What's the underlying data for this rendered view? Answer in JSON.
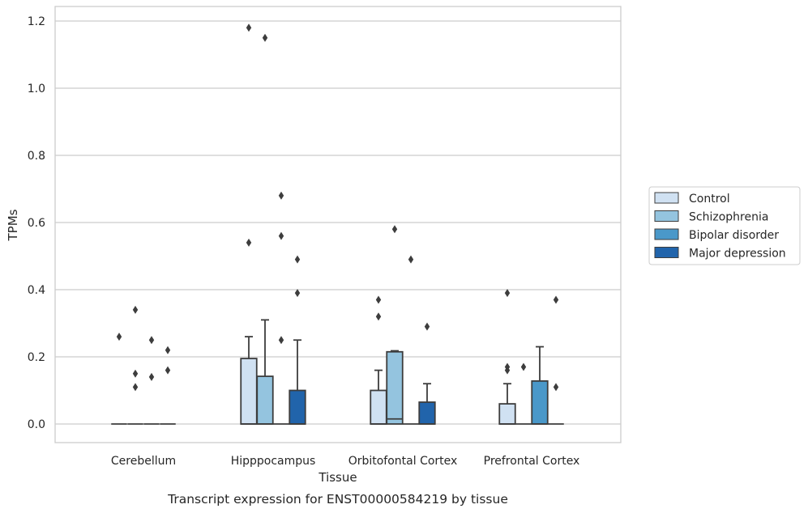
{
  "chart_data": {
    "type": "box",
    "caption": "Transcript expression for ENST00000584219 by tissue",
    "xlabel": "Tissue",
    "ylabel": "TPMs",
    "ylim": [
      -0.057,
      1.24
    ],
    "yticks": [
      0.0,
      0.2,
      0.4,
      0.6,
      0.8,
      1.0,
      1.2
    ],
    "ytick_labels": [
      "0.0",
      "0.2",
      "0.4",
      "0.6",
      "0.8",
      "1.0",
      "1.2"
    ],
    "grid": "horizontal",
    "legend_position": "right",
    "categories": [
      "Cerebellum",
      "Hipppocampus",
      "Orbitofontal Cortex",
      "Prefrontal Cortex"
    ],
    "series": [
      {
        "name": "Control",
        "color": "#d0e1f2",
        "boxes": [
          {
            "q1": 0,
            "median": 0,
            "q3": 0,
            "whislo": 0,
            "whishi": 0,
            "fliers": [
              0.26
            ]
          },
          {
            "q1": 0,
            "median": 0,
            "q3": 0.195,
            "whislo": 0,
            "whishi": 0.26,
            "fliers": [
              0.54,
              1.18
            ]
          },
          {
            "q1": 0,
            "median": 0,
            "q3": 0.1,
            "whislo": 0,
            "whishi": 0.16,
            "fliers": [
              0.32,
              0.37
            ]
          },
          {
            "q1": 0,
            "median": 0,
            "q3": 0.06,
            "whislo": 0,
            "whishi": 0.12,
            "fliers": [
              0.16,
              0.17,
              0.39
            ]
          }
        ]
      },
      {
        "name": "Schizophrenia",
        "color": "#94c4df",
        "boxes": [
          {
            "q1": 0,
            "median": 0,
            "q3": 0,
            "whislo": 0,
            "whishi": 0,
            "fliers": [
              0.11,
              0.15,
              0.34
            ]
          },
          {
            "q1": 0,
            "median": 0,
            "q3": 0.142,
            "whislo": 0,
            "whishi": 0.31,
            "fliers": [
              1.15
            ]
          },
          {
            "q1": 0,
            "median": 0.015,
            "q3": 0.215,
            "whislo": 0,
            "whishi": 0.218,
            "fliers": [
              0.58
            ]
          },
          {
            "q1": 0,
            "median": 0,
            "q3": 0,
            "whislo": 0,
            "whishi": 0,
            "fliers": [
              0.17
            ]
          }
        ]
      },
      {
        "name": "Bipolar disorder",
        "color": "#4a98c9",
        "boxes": [
          {
            "q1": 0,
            "median": 0,
            "q3": 0,
            "whislo": 0,
            "whishi": 0,
            "fliers": [
              0.14,
              0.25
            ]
          },
          {
            "q1": 0,
            "median": 0,
            "q3": 0,
            "whislo": 0,
            "whishi": 0,
            "fliers": [
              0.25,
              0.56,
              0.68
            ]
          },
          {
            "q1": 0,
            "median": 0,
            "q3": 0,
            "whislo": 0,
            "whishi": 0,
            "fliers": [
              0.49
            ]
          },
          {
            "q1": 0,
            "median": 0,
            "q3": 0.128,
            "whislo": 0,
            "whishi": 0.23,
            "fliers": []
          }
        ]
      },
      {
        "name": "Major depression",
        "color": "#2164ab",
        "boxes": [
          {
            "q1": 0,
            "median": 0,
            "q3": 0,
            "whislo": 0,
            "whishi": 0,
            "fliers": [
              0.16,
              0.22
            ]
          },
          {
            "q1": 0,
            "median": 0,
            "q3": 0.1,
            "whislo": 0,
            "whishi": 0.25,
            "fliers": [
              0.39,
              0.49
            ]
          },
          {
            "q1": 0,
            "median": 0,
            "q3": 0.065,
            "whislo": 0,
            "whishi": 0.12,
            "fliers": [
              0.29
            ]
          },
          {
            "q1": 0,
            "median": 0,
            "q3": 0,
            "whislo": 0,
            "whishi": 0,
            "fliers": [
              0.11,
              0.37
            ]
          }
        ]
      }
    ]
  }
}
